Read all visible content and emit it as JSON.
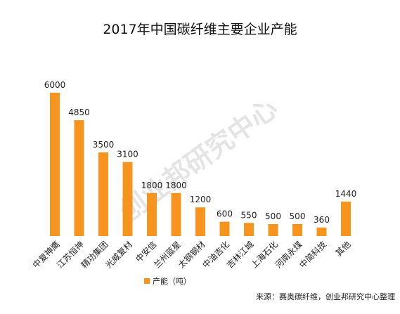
{
  "chart_data": {
    "type": "bar",
    "title": "2017年中国碳纤维主要企业产能",
    "categories": [
      "中复神鹰",
      "江苏恒神",
      "精功集团",
      "光威复材",
      "中安信",
      "兰州蓝星",
      "太钢钢材",
      "中油吉化",
      "吉林江城",
      "上海石化",
      "河南永煤",
      "中简科技",
      "其他"
    ],
    "values": [
      6000,
      4850,
      3500,
      3100,
      1800,
      1800,
      1200,
      600,
      550,
      500,
      500,
      360,
      1440
    ],
    "value_labels": [
      "6000",
      "4850",
      "3500",
      "3100",
      "1800",
      "1800",
      "1200",
      "600",
      "550",
      "500",
      "500",
      "360",
      "1440"
    ],
    "ylim": [
      0,
      6000
    ],
    "legend": {
      "label": "产能（吨）",
      "position": "bottom-left"
    },
    "bar_color": "#F7941D",
    "grid": false
  },
  "source_text": "来源：赛奥碳纤维，创业邦研究中心整理",
  "watermark_text": "创业邦研究中心"
}
